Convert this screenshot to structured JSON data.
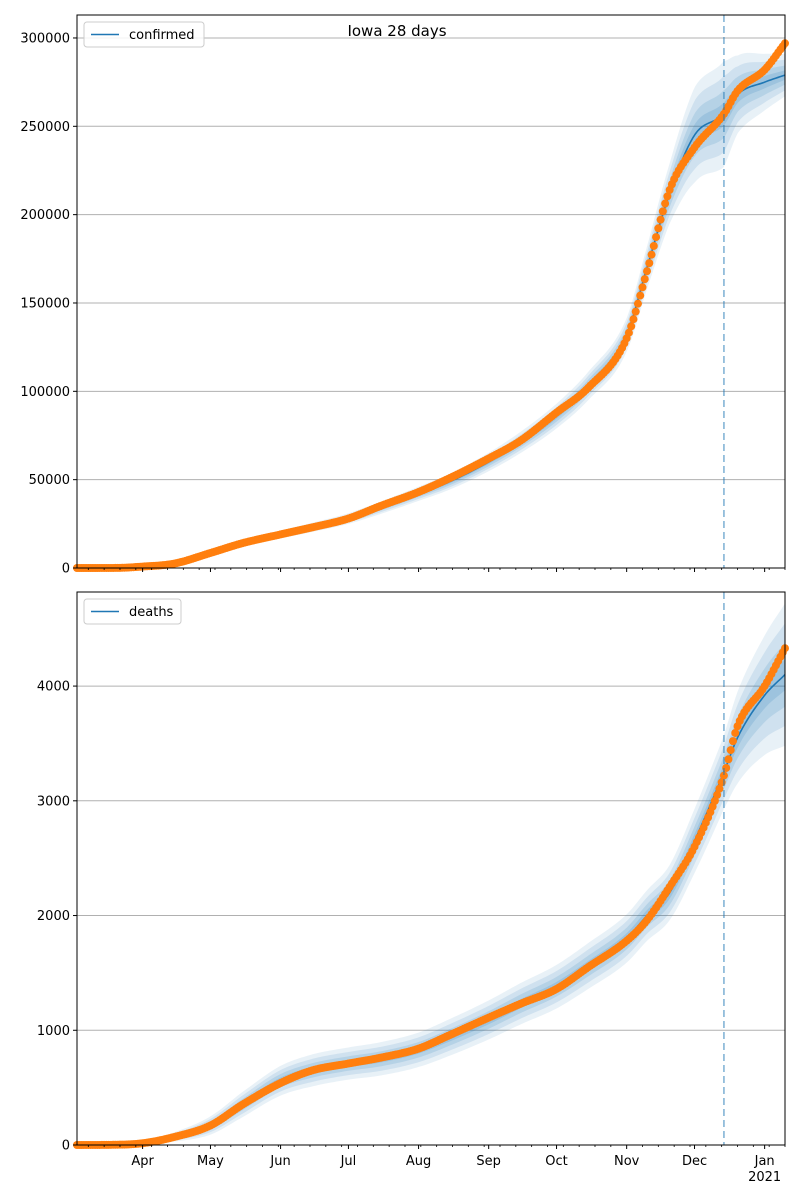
{
  "chart_data": [
    {
      "type": "line",
      "title": "Iowa 28 days",
      "legend": "confirmed",
      "legend_position": "top-left",
      "grid_y": true,
      "ylim": [
        0,
        313000
      ],
      "yticks": [
        0,
        50000,
        100000,
        150000,
        200000,
        250000,
        300000
      ],
      "ytick_labels": [
        "0",
        "50000",
        "100000",
        "150000",
        "200000",
        "250000",
        "300000"
      ],
      "forecast_start": "2020-12-14",
      "model": {
        "x": [
          "2020-03-03",
          "2020-03-20",
          "2020-04-01",
          "2020-04-15",
          "2020-05-01",
          "2020-05-15",
          "2020-06-01",
          "2020-06-15",
          "2020-07-01",
          "2020-07-15",
          "2020-08-01",
          "2020-08-15",
          "2020-09-01",
          "2020-09-15",
          "2020-10-01",
          "2020-10-15",
          "2020-11-01",
          "2020-11-10",
          "2020-11-20",
          "2020-12-01",
          "2020-12-14",
          "2020-12-20",
          "2021-01-01",
          "2021-01-10"
        ],
        "y": [
          0,
          50,
          1000,
          3000,
          9000,
          14000,
          19000,
          23000,
          28000,
          34000,
          42000,
          49000,
          60000,
          71000,
          86000,
          103000,
          132000,
          170000,
          212000,
          245000,
          257000,
          268000,
          275000,
          279000
        ],
        "band_width": [
          0,
          100,
          500,
          1000,
          1500,
          1800,
          2200,
          2600,
          3000,
          3500,
          4000,
          4500,
          5200,
          6000,
          7000,
          8000,
          9500,
          12000,
          17000,
          27000,
          30000,
          22000,
          16000,
          12000
        ]
      },
      "observed": {
        "x": [
          "2020-03-03",
          "2020-03-20",
          "2020-04-01",
          "2020-04-15",
          "2020-05-01",
          "2020-05-15",
          "2020-06-01",
          "2020-06-15",
          "2020-07-01",
          "2020-07-15",
          "2020-08-01",
          "2020-08-15",
          "2020-09-01",
          "2020-09-15",
          "2020-10-01",
          "2020-10-15",
          "2020-11-01",
          "2020-11-10",
          "2020-11-20",
          "2020-12-01",
          "2020-12-14",
          "2020-12-20",
          "2021-01-01",
          "2021-01-10"
        ],
        "y": [
          0,
          40,
          800,
          2500,
          8500,
          14000,
          19000,
          23000,
          28000,
          35000,
          43000,
          51000,
          62000,
          72000,
          88000,
          102000,
          130000,
          168000,
          214000,
          238000,
          257000,
          270000,
          282000,
          297000
        ]
      }
    },
    {
      "type": "line",
      "legend": "deaths",
      "legend_position": "top-left",
      "grid_y": true,
      "ylim": [
        0,
        4820
      ],
      "yticks": [
        0,
        1000,
        2000,
        3000,
        4000
      ],
      "ytick_labels": [
        "0",
        "1000",
        "2000",
        "3000",
        "4000"
      ],
      "forecast_start": "2020-12-14",
      "x_range": [
        "2020-03-03",
        "2021-01-10"
      ],
      "x_major_ticks": [
        "2020-04-01",
        "2020-05-01",
        "2020-06-01",
        "2020-07-01",
        "2020-08-01",
        "2020-09-01",
        "2020-10-01",
        "2020-11-01",
        "2020-12-01",
        "2021-01-01"
      ],
      "x_tick_labels": [
        "Apr",
        "May",
        "Jun",
        "Jul",
        "Aug",
        "Sep",
        "Oct",
        "Nov",
        "Dec",
        "Jan\n2021"
      ],
      "model": {
        "x": [
          "2020-03-03",
          "2020-03-20",
          "2020-04-01",
          "2020-04-15",
          "2020-05-01",
          "2020-05-15",
          "2020-06-01",
          "2020-06-15",
          "2020-07-01",
          "2020-07-15",
          "2020-08-01",
          "2020-08-15",
          "2020-09-01",
          "2020-09-15",
          "2020-10-01",
          "2020-10-15",
          "2020-11-01",
          "2020-11-10",
          "2020-11-20",
          "2020-12-01",
          "2020-12-14",
          "2020-12-20",
          "2021-01-01",
          "2021-01-10"
        ],
        "y": [
          0,
          2,
          15,
          70,
          170,
          350,
          560,
          650,
          710,
          750,
          830,
          940,
          1090,
          1230,
          1380,
          1560,
          1800,
          2000,
          2200,
          2650,
          3250,
          3550,
          3920,
          4100
        ],
        "band_width": [
          0,
          5,
          15,
          40,
          80,
          110,
          130,
          140,
          140,
          145,
          150,
          160,
          170,
          180,
          190,
          200,
          210,
          220,
          240,
          280,
          320,
          400,
          520,
          620
        ]
      },
      "observed": {
        "x": [
          "2020-03-03",
          "2020-03-20",
          "2020-04-01",
          "2020-04-15",
          "2020-05-01",
          "2020-05-15",
          "2020-06-01",
          "2020-06-15",
          "2020-07-01",
          "2020-07-15",
          "2020-08-01",
          "2020-08-15",
          "2020-09-01",
          "2020-09-15",
          "2020-10-01",
          "2020-10-15",
          "2020-11-01",
          "2020-11-10",
          "2020-11-20",
          "2020-12-01",
          "2020-12-14",
          "2020-12-20",
          "2021-01-01",
          "2021-01-10"
        ],
        "y": [
          0,
          2,
          15,
          70,
          170,
          350,
          540,
          650,
          710,
          760,
          840,
          960,
          1110,
          1230,
          1360,
          1550,
          1780,
          1960,
          2250,
          2600,
          3220,
          3650,
          4000,
          4330
        ]
      }
    }
  ],
  "colors": {
    "model_line": "#1f77b4",
    "observed": "#ff7f0e",
    "band": "#1f77b4",
    "forecast_line": "#1f77b4",
    "grid": "#b0b0b0"
  }
}
